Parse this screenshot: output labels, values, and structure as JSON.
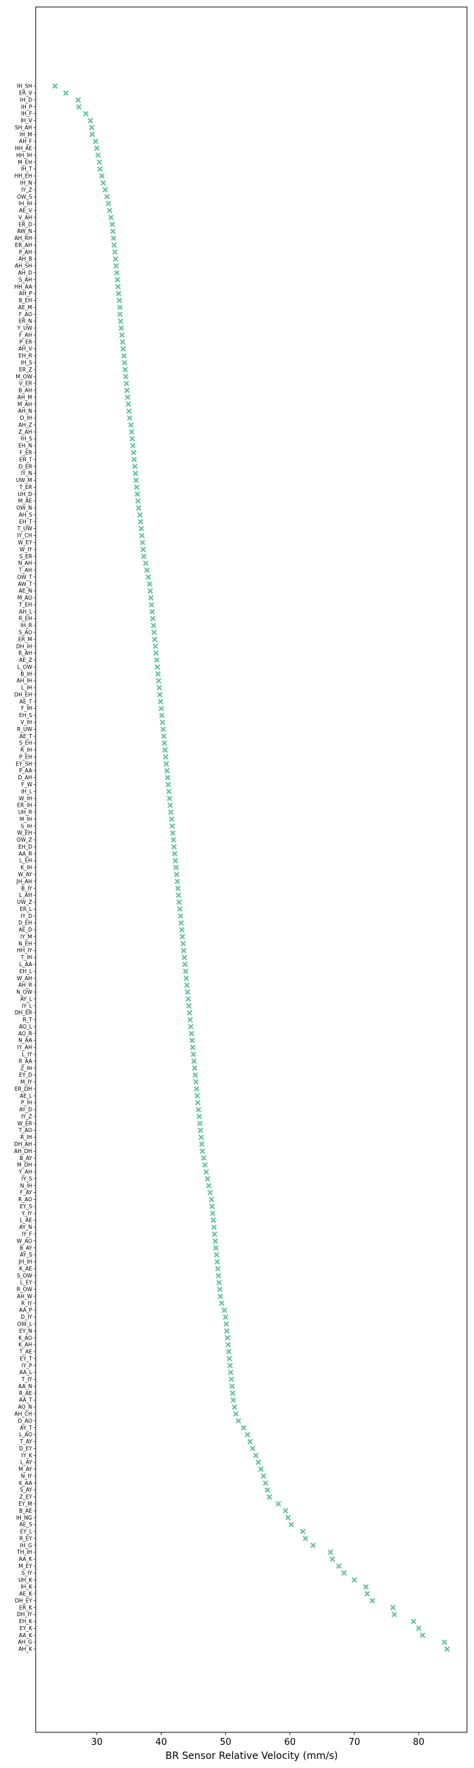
{
  "chart_data": {
    "type": "scatter",
    "title": "",
    "xlabel": "BR Sensor Relative Velocity (mm/s)",
    "ylabel": "",
    "xlim": [
      20.5,
      87.5
    ],
    "xticks": [
      30,
      40,
      50,
      60,
      70,
      80
    ],
    "grid": false,
    "marker": "X",
    "color": "#66c2a5",
    "points": [
      {
        "label": "IH_SH",
        "x": 23.5
      },
      {
        "label": "ER_V",
        "x": 25.2
      },
      {
        "label": "IH_D",
        "x": 27.1
      },
      {
        "label": "IH_P",
        "x": 27.2
      },
      {
        "label": "IH_F",
        "x": 28.3
      },
      {
        "label": "IH_V",
        "x": 29.0
      },
      {
        "label": "SH_AH",
        "x": 29.2
      },
      {
        "label": "IH_M",
        "x": 29.3
      },
      {
        "label": "AH_F",
        "x": 29.8
      },
      {
        "label": "HH_AE",
        "x": 30.0
      },
      {
        "label": "HH_IH",
        "x": 30.2
      },
      {
        "label": "M_EH",
        "x": 30.4
      },
      {
        "label": "IH_T",
        "x": 30.5
      },
      {
        "label": "HH_EH",
        "x": 30.8
      },
      {
        "label": "IH_N",
        "x": 31.0
      },
      {
        "label": "IY_Z",
        "x": 31.3
      },
      {
        "label": "OW_S",
        "x": 31.6
      },
      {
        "label": "IH_IH",
        "x": 31.8
      },
      {
        "label": "AE_V",
        "x": 32.0
      },
      {
        "label": "V_AH",
        "x": 32.2
      },
      {
        "label": "ER_D",
        "x": 32.4
      },
      {
        "label": "AW_N",
        "x": 32.5
      },
      {
        "label": "AH_RH",
        "x": 32.6
      },
      {
        "label": "ER_AH",
        "x": 32.7
      },
      {
        "label": "P_AH",
        "x": 32.8
      },
      {
        "label": "AH_B",
        "x": 32.9
      },
      {
        "label": "AH_SH",
        "x": 33.0
      },
      {
        "label": "AH_D",
        "x": 33.1
      },
      {
        "label": "S_AH",
        "x": 33.2
      },
      {
        "label": "HH_AA",
        "x": 33.3
      },
      {
        "label": "AH_P",
        "x": 33.4
      },
      {
        "label": "B_EH",
        "x": 33.5
      },
      {
        "label": "AE_M",
        "x": 33.6
      },
      {
        "label": "F_AO",
        "x": 33.6
      },
      {
        "label": "ER_N",
        "x": 33.7
      },
      {
        "label": "Y_UW",
        "x": 33.8
      },
      {
        "label": "F_AH",
        "x": 33.9
      },
      {
        "label": "P_ER",
        "x": 34.0
      },
      {
        "label": "AH_V",
        "x": 34.1
      },
      {
        "label": "EH_R",
        "x": 34.2
      },
      {
        "label": "IH_S",
        "x": 34.3
      },
      {
        "label": "ER_Z",
        "x": 34.4
      },
      {
        "label": "M_OW",
        "x": 34.5
      },
      {
        "label": "V_ER",
        "x": 34.6
      },
      {
        "label": "B_AH",
        "x": 34.7
      },
      {
        "label": "AH_M",
        "x": 34.8
      },
      {
        "label": "M_AH",
        "x": 34.9
      },
      {
        "label": "AH_N",
        "x": 35.0
      },
      {
        "label": "D_IH",
        "x": 35.1
      },
      {
        "label": "AH_Z",
        "x": 35.3
      },
      {
        "label": "Z_AH",
        "x": 35.4
      },
      {
        "label": "IH_S",
        "x": 35.5
      },
      {
        "label": "EH_N",
        "x": 35.6
      },
      {
        "label": "F_ER",
        "x": 35.7
      },
      {
        "label": "ER_T",
        "x": 35.8
      },
      {
        "label": "D_ER",
        "x": 35.9
      },
      {
        "label": "IY_N",
        "x": 36.0
      },
      {
        "label": "UW_M",
        "x": 36.1
      },
      {
        "label": "T_ER",
        "x": 36.2
      },
      {
        "label": "UH_D",
        "x": 36.3
      },
      {
        "label": "M_AE",
        "x": 36.4
      },
      {
        "label": "OW_N",
        "x": 36.5
      },
      {
        "label": "AH_S",
        "x": 36.7
      },
      {
        "label": "EH_T",
        "x": 36.8
      },
      {
        "label": "T_UW",
        "x": 36.9
      },
      {
        "label": "IY_CH",
        "x": 37.0
      },
      {
        "label": "W_EY",
        "x": 37.1
      },
      {
        "label": "W_IY",
        "x": 37.2
      },
      {
        "label": "S_ER",
        "x": 37.3
      },
      {
        "label": "N_AH",
        "x": 37.6
      },
      {
        "label": "T_AH",
        "x": 37.8
      },
      {
        "label": "OW_T",
        "x": 38.0
      },
      {
        "label": "AW_T",
        "x": 38.2
      },
      {
        "label": "AE_N",
        "x": 38.3
      },
      {
        "label": "M_AO",
        "x": 38.4
      },
      {
        "label": "T_EH",
        "x": 38.5
      },
      {
        "label": "AH_L",
        "x": 38.6
      },
      {
        "label": "R_EH",
        "x": 38.7
      },
      {
        "label": "IH_R",
        "x": 38.8
      },
      {
        "label": "S_AO",
        "x": 38.9
      },
      {
        "label": "ER_M",
        "x": 39.0
      },
      {
        "label": "DH_IH",
        "x": 39.1
      },
      {
        "label": "R_AH",
        "x": 39.2
      },
      {
        "label": "AE_Z",
        "x": 39.3
      },
      {
        "label": "L_OW",
        "x": 39.4
      },
      {
        "label": "B_IH",
        "x": 39.5
      },
      {
        "label": "AH_IH",
        "x": 39.6
      },
      {
        "label": "L_IH",
        "x": 39.7
      },
      {
        "label": "DH_EH",
        "x": 39.8
      },
      {
        "label": "AE_T",
        "x": 39.9
      },
      {
        "label": "F_IH",
        "x": 40.0
      },
      {
        "label": "EH_S",
        "x": 40.1
      },
      {
        "label": "V_IH",
        "x": 40.2
      },
      {
        "label": "R_UW",
        "x": 40.3
      },
      {
        "label": "AE_T",
        "x": 40.4
      },
      {
        "label": "S_EH",
        "x": 40.5
      },
      {
        "label": "R_IH",
        "x": 40.6
      },
      {
        "label": "P_EH",
        "x": 40.7
      },
      {
        "label": "EY_SH",
        "x": 40.8
      },
      {
        "label": "P_AA",
        "x": 40.9
      },
      {
        "label": "D_AH",
        "x": 41.0
      },
      {
        "label": "F_W",
        "x": 41.1
      },
      {
        "label": "IH_L",
        "x": 41.2
      },
      {
        "label": "W_IH",
        "x": 41.3
      },
      {
        "label": "ER_IH",
        "x": 41.4
      },
      {
        "label": "UH_R",
        "x": 41.5
      },
      {
        "label": "M_IH",
        "x": 41.6
      },
      {
        "label": "S_IH",
        "x": 41.7
      },
      {
        "label": "W_EH",
        "x": 41.8
      },
      {
        "label": "OW_Z",
        "x": 41.9
      },
      {
        "label": "EH_D",
        "x": 42.0
      },
      {
        "label": "AA_R",
        "x": 42.1
      },
      {
        "label": "L_EH",
        "x": 42.2
      },
      {
        "label": "K_IH",
        "x": 42.3
      },
      {
        "label": "W_AY",
        "x": 42.4
      },
      {
        "label": "JH_AH",
        "x": 42.5
      },
      {
        "label": "B_IY",
        "x": 42.6
      },
      {
        "label": "L_AH",
        "x": 42.7
      },
      {
        "label": "UW_Z",
        "x": 42.8
      },
      {
        "label": "ER_L",
        "x": 42.9
      },
      {
        "label": "IY_D",
        "x": 43.0
      },
      {
        "label": "D_EH",
        "x": 43.1
      },
      {
        "label": "AE_D",
        "x": 43.2
      },
      {
        "label": "IY_M",
        "x": 43.3
      },
      {
        "label": "N_EH",
        "x": 43.4
      },
      {
        "label": "HH_IY",
        "x": 43.5
      },
      {
        "label": "T_IH",
        "x": 43.6
      },
      {
        "label": "L_AA",
        "x": 43.7
      },
      {
        "label": "EH_L",
        "x": 43.8
      },
      {
        "label": "W_AH",
        "x": 43.9
      },
      {
        "label": "AH_R",
        "x": 44.0
      },
      {
        "label": "N_OW",
        "x": 44.1
      },
      {
        "label": "AY_L",
        "x": 44.2
      },
      {
        "label": "IY_L",
        "x": 44.3
      },
      {
        "label": "DH_ER",
        "x": 44.4
      },
      {
        "label": "R_T",
        "x": 44.5
      },
      {
        "label": "AO_L",
        "x": 44.6
      },
      {
        "label": "AO_R",
        "x": 44.7
      },
      {
        "label": "N_AA",
        "x": 44.8
      },
      {
        "label": "IY_AH",
        "x": 44.9
      },
      {
        "label": "L_IY",
        "x": 45.0
      },
      {
        "label": "R_AA",
        "x": 45.1
      },
      {
        "label": "Z_IH",
        "x": 45.2
      },
      {
        "label": "EY_D",
        "x": 45.3
      },
      {
        "label": "M_IY",
        "x": 45.4
      },
      {
        "label": "ER_DH",
        "x": 45.5
      },
      {
        "label": "AE_L",
        "x": 45.6
      },
      {
        "label": "P_IH",
        "x": 45.7
      },
      {
        "label": "AY_D",
        "x": 45.8
      },
      {
        "label": "IY_Z",
        "x": 45.9
      },
      {
        "label": "W_ER",
        "x": 46.0
      },
      {
        "label": "T_AO",
        "x": 46.1
      },
      {
        "label": "R_IH",
        "x": 46.2
      },
      {
        "label": "DH_AH",
        "x": 46.3
      },
      {
        "label": "AH_DH",
        "x": 46.4
      },
      {
        "label": "B_AY",
        "x": 46.6
      },
      {
        "label": "M_DH",
        "x": 46.8
      },
      {
        "label": "Y_AH",
        "x": 47.0
      },
      {
        "label": "IY_S",
        "x": 47.2
      },
      {
        "label": "N_IH",
        "x": 47.4
      },
      {
        "label": "F_AY",
        "x": 47.6
      },
      {
        "label": "R_AO",
        "x": 47.8
      },
      {
        "label": "EY_S",
        "x": 47.9
      },
      {
        "label": "Y_IY",
        "x": 48.0
      },
      {
        "label": "L_AE",
        "x": 48.1
      },
      {
        "label": "AY_N",
        "x": 48.2
      },
      {
        "label": "IY_F",
        "x": 48.3
      },
      {
        "label": "W_AO",
        "x": 48.4
      },
      {
        "label": "B_AY",
        "x": 48.5
      },
      {
        "label": "AY_S",
        "x": 48.6
      },
      {
        "label": "JH_IH",
        "x": 48.7
      },
      {
        "label": "K_AE",
        "x": 48.8
      },
      {
        "label": "S_OW",
        "x": 48.9
      },
      {
        "label": "L_EY",
        "x": 49.0
      },
      {
        "label": "R_OW",
        "x": 49.1
      },
      {
        "label": "AH_W",
        "x": 49.2
      },
      {
        "label": "R_IY",
        "x": 49.4
      },
      {
        "label": "AA_P",
        "x": 49.8
      },
      {
        "label": "D_IY",
        "x": 50.0
      },
      {
        "label": "OW_L",
        "x": 50.1
      },
      {
        "label": "EY_N",
        "x": 50.2
      },
      {
        "label": "K_AO",
        "x": 50.3
      },
      {
        "label": "K_AH",
        "x": 50.4
      },
      {
        "label": "T_AE",
        "x": 50.5
      },
      {
        "label": "EY_T",
        "x": 50.6
      },
      {
        "label": "IY_P",
        "x": 50.7
      },
      {
        "label": "AA_L",
        "x": 50.8
      },
      {
        "label": "T_IY",
        "x": 50.9
      },
      {
        "label": "AA_N",
        "x": 51.0
      },
      {
        "label": "R_AE",
        "x": 51.1
      },
      {
        "label": "AA_T",
        "x": 51.2
      },
      {
        "label": "AO_N",
        "x": 51.4
      },
      {
        "label": "AH_CH",
        "x": 51.6
      },
      {
        "label": "D_AO",
        "x": 52.0
      },
      {
        "label": "AY_T",
        "x": 52.8
      },
      {
        "label": "L_AO",
        "x": 53.4
      },
      {
        "label": "T_AY",
        "x": 53.8
      },
      {
        "label": "D_EY",
        "x": 54.2
      },
      {
        "label": "IY_K",
        "x": 54.7
      },
      {
        "label": "L_AY",
        "x": 55.1
      },
      {
        "label": "M_AY",
        "x": 55.5
      },
      {
        "label": "N_IY",
        "x": 55.9
      },
      {
        "label": "K_AA",
        "x": 56.2
      },
      {
        "label": "S_AY",
        "x": 56.5
      },
      {
        "label": "Z_EY",
        "x": 56.8
      },
      {
        "label": "EY_M",
        "x": 58.2
      },
      {
        "label": "B_AE",
        "x": 59.3
      },
      {
        "label": "IH_NG",
        "x": 59.7
      },
      {
        "label": "AE_S",
        "x": 60.2
      },
      {
        "label": "EY_L",
        "x": 62.0
      },
      {
        "label": "R_EY",
        "x": 62.4
      },
      {
        "label": "IH_G",
        "x": 63.6
      },
      {
        "label": "TH_IH",
        "x": 66.3
      },
      {
        "label": "AA_K",
        "x": 66.6
      },
      {
        "label": "M_EY",
        "x": 67.6
      },
      {
        "label": "S_IY",
        "x": 68.4
      },
      {
        "label": "UH_K",
        "x": 70.0
      },
      {
        "label": "IH_K",
        "x": 71.8
      },
      {
        "label": "AE_K",
        "x": 72.0
      },
      {
        "label": "DH_EY",
        "x": 72.8
      },
      {
        "label": "ER_K",
        "x": 76.0
      },
      {
        "label": "DH_IY",
        "x": 76.2
      },
      {
        "label": "EH_K",
        "x": 79.2
      },
      {
        "label": "EY_K",
        "x": 80.0
      },
      {
        "label": "AA_K",
        "x": 80.6
      },
      {
        "label": "AH_G",
        "x": 84.0
      },
      {
        "label": "AH_K",
        "x": 84.4
      }
    ]
  }
}
